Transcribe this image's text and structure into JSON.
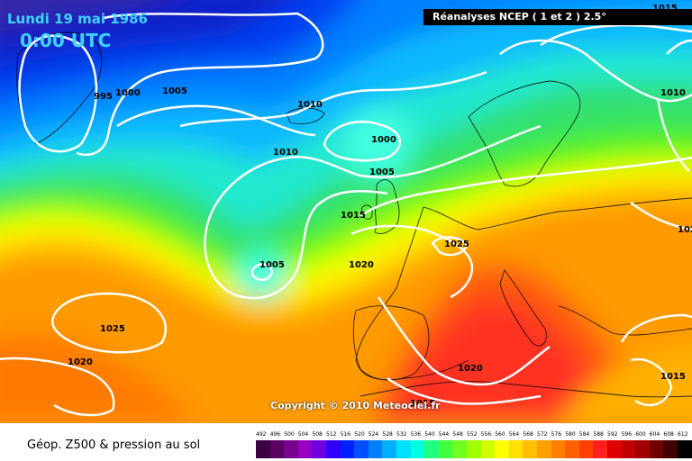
{
  "title": {
    "date": "Lundi 19 mai 1986",
    "time": "0:00 UTC",
    "source": "Réanalyses NCEP ( 1 et 2 ) 2.5°",
    "copyright": "Copyright © 2010 Meteociel.fr"
  },
  "legend": {
    "title": "Géop. Z500 & pression au sol",
    "ticks": [
      "492",
      "496",
      "500",
      "504",
      "508",
      "512",
      "516",
      "520",
      "524",
      "528",
      "532",
      "536",
      "540",
      "544",
      "548",
      "552",
      "556",
      "560",
      "564",
      "568",
      "572",
      "576",
      "580",
      "584",
      "588",
      "592",
      "596",
      "600",
      "604",
      "608",
      "612"
    ],
    "colors": [
      "#3b0040",
      "#5a0060",
      "#7a0090",
      "#9a00c0",
      "#7000e0",
      "#3000ff",
      "#0020ff",
      "#0050ff",
      "#0080ff",
      "#00b0ff",
      "#00e0ff",
      "#00ffe0",
      "#20ff80",
      "#40ff40",
      "#70ff20",
      "#a0ff00",
      "#d0ff00",
      "#ffff00",
      "#ffe000",
      "#ffc000",
      "#ffa000",
      "#ff8000",
      "#ff6000",
      "#ff4000",
      "#ff2020",
      "#e00000",
      "#c00000",
      "#a00000",
      "#700000",
      "#400000",
      "#000000"
    ]
  },
  "isobars": [
    {
      "label": "995"
    },
    {
      "label": "1000"
    },
    {
      "label": "1005"
    },
    {
      "label": "1010"
    },
    {
      "label": "1010"
    },
    {
      "label": "1000"
    },
    {
      "label": "1005"
    },
    {
      "label": "1015"
    },
    {
      "label": "1005"
    },
    {
      "label": "1020"
    },
    {
      "label": "1025"
    },
    {
      "label": "1025"
    },
    {
      "label": "1020"
    },
    {
      "label": "1020"
    },
    {
      "label": "1015"
    },
    {
      "label": "1015"
    },
    {
      "label": "1010"
    },
    {
      "label": "1015"
    },
    {
      "label": "102"
    }
  ]
}
